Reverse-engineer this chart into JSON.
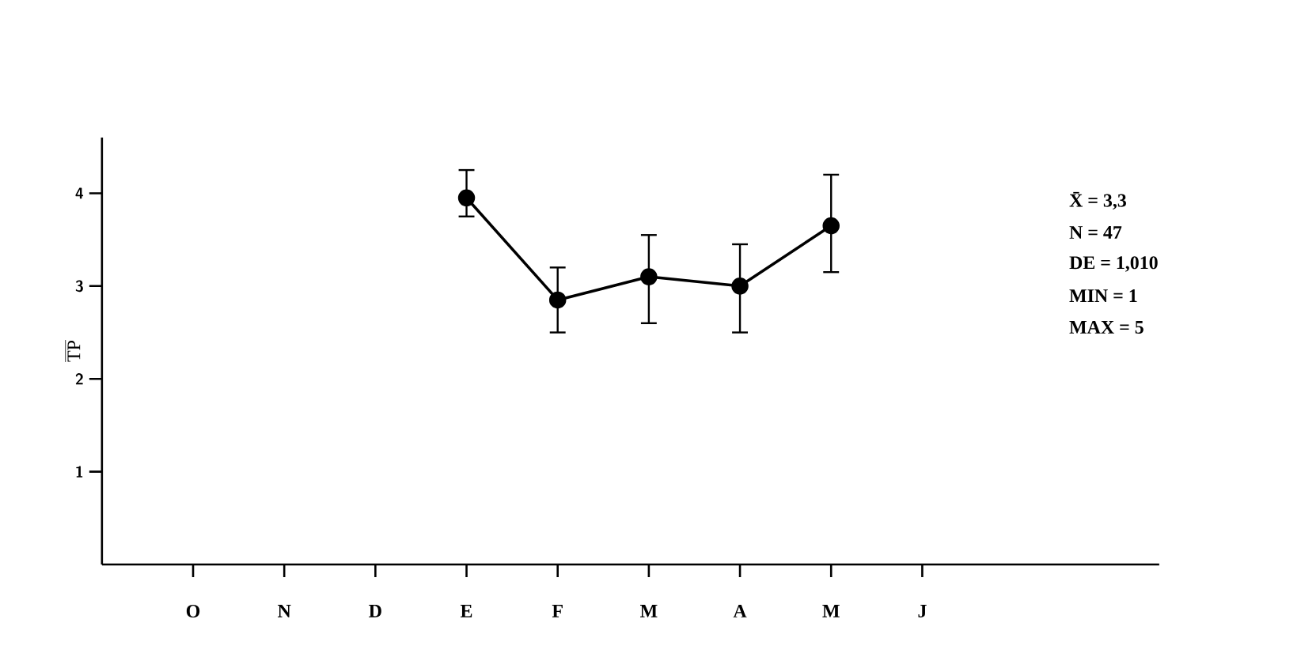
{
  "chart_data": {
    "type": "line",
    "categories": [
      "O",
      "N",
      "D",
      "E",
      "F",
      "M",
      "A",
      "M",
      "J"
    ],
    "ylabel": "TP",
    "ylim": [
      0,
      4.6
    ],
    "yticks": [
      1,
      2,
      3,
      4
    ],
    "series": [
      {
        "color": "#000000",
        "values": [
          null,
          null,
          null,
          3.95,
          2.85,
          3.1,
          3.0,
          3.65,
          null
        ],
        "errors": [
          null,
          null,
          null,
          [
            3.75,
            4.25
          ],
          [
            2.5,
            3.2
          ],
          [
            2.6,
            3.55
          ],
          [
            2.5,
            3.45
          ],
          [
            3.15,
            4.2
          ],
          null
        ]
      }
    ],
    "marker": "circle",
    "line_style": "solid",
    "annotations": [
      "X̄ = 3,3",
      "N = 47",
      "DE = 1,010",
      "MIN = 1",
      "MAX = 5"
    ]
  }
}
